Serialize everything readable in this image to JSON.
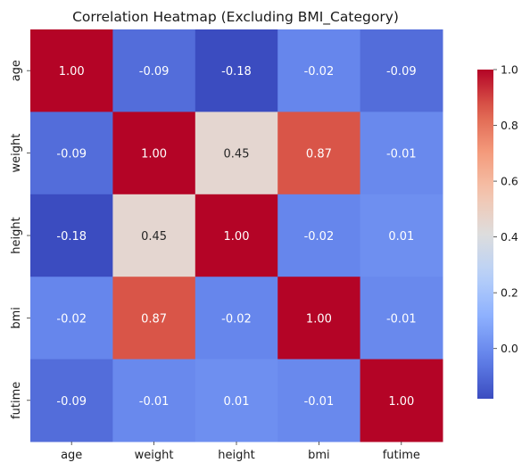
{
  "chart_data": {
    "type": "heatmap",
    "title": "Correlation Heatmap (Excluding BMI_Category)",
    "xlabel": "",
    "ylabel": "",
    "x_categories": [
      "age",
      "weight",
      "height",
      "bmi",
      "futime"
    ],
    "y_categories": [
      "age",
      "weight",
      "height",
      "bmi",
      "futime"
    ],
    "values": [
      [
        1.0,
        -0.09,
        -0.18,
        -0.02,
        -0.09
      ],
      [
        -0.09,
        1.0,
        0.45,
        0.87,
        -0.01
      ],
      [
        -0.18,
        0.45,
        1.0,
        -0.02,
        0.01
      ],
      [
        -0.02,
        0.87,
        -0.02,
        1.0,
        -0.01
      ],
      [
        -0.09,
        -0.01,
        0.01,
        -0.01,
        1.0
      ]
    ],
    "color_range": [
      -0.18,
      1.0
    ],
    "colormap": "coolwarm",
    "colorbar_ticks": [
      "1.0",
      "0.8",
      "0.6",
      "0.4",
      "0.2",
      "0.0"
    ],
    "annotation_format": "2 decimals"
  }
}
